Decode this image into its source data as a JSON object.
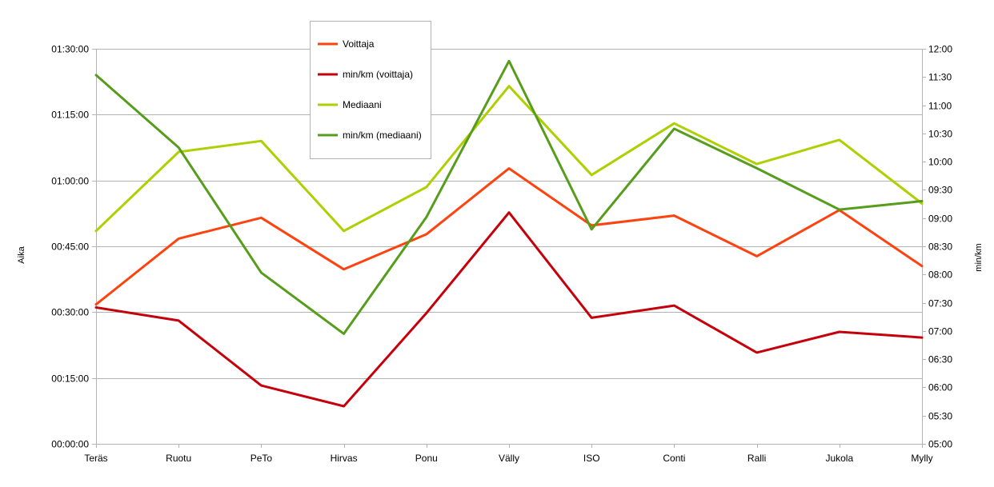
{
  "chart_data": {
    "type": "line",
    "categories": [
      "Teräs",
      "Ruotu",
      "PeTo",
      "Hirvas",
      "Ponu",
      "Välly",
      "ISO",
      "Conti",
      "Ralli",
      "Jukola",
      "Mylly"
    ],
    "series": [
      {
        "name": "Voittaja",
        "axis": "left",
        "color": "#ff420e",
        "values": [
          "00:31:45",
          "00:46:45",
          "00:51:30",
          "00:39:45",
          "00:47:45",
          "01:02:45",
          "00:49:45",
          "00:52:00",
          "00:42:45",
          "00:53:15",
          "00:40:30"
        ]
      },
      {
        "name": "min/km (voittaja)",
        "axis": "right",
        "color": "#c5000b",
        "values": [
          "07:25",
          "07:11",
          "06:02",
          "05:40",
          "07:19",
          "09:06",
          "07:14",
          "07:27",
          "06:37",
          "06:59",
          "06:53"
        ]
      },
      {
        "name": "Mediaani",
        "axis": "left",
        "color": "#aecf00",
        "values": [
          "00:48:30",
          "01:06:30",
          "01:09:00",
          "00:48:30",
          "00:58:30",
          "01:21:30",
          "01:01:15",
          "01:13:00",
          "01:03:45",
          "01:09:15",
          "00:54:45"
        ]
      },
      {
        "name": "min/km (mediaani)",
        "axis": "right",
        "color": "#579d1c",
        "values": [
          "11:32",
          "10:15",
          "08:02",
          "06:57",
          "09:01",
          "11:47",
          "08:48",
          "10:35",
          "09:53",
          "09:09",
          "09:18"
        ]
      }
    ],
    "left_axis": {
      "label": "Aika",
      "ticks": [
        "00:00:00",
        "00:15:00",
        "00:30:00",
        "00:45:00",
        "01:00:00",
        "01:15:00",
        "01:30:00"
      ],
      "min": "00:00:00",
      "max": "01:30:00"
    },
    "right_axis": {
      "label": "min/km",
      "ticks": [
        "05:00",
        "05:30",
        "06:00",
        "06:30",
        "07:00",
        "07:30",
        "08:00",
        "08:30",
        "09:00",
        "09:30",
        "10:00",
        "10:30",
        "11:00",
        "11:30",
        "12:00"
      ],
      "min": "05:00",
      "max": "12:00"
    },
    "grid": true,
    "legend_position": "top-center"
  }
}
